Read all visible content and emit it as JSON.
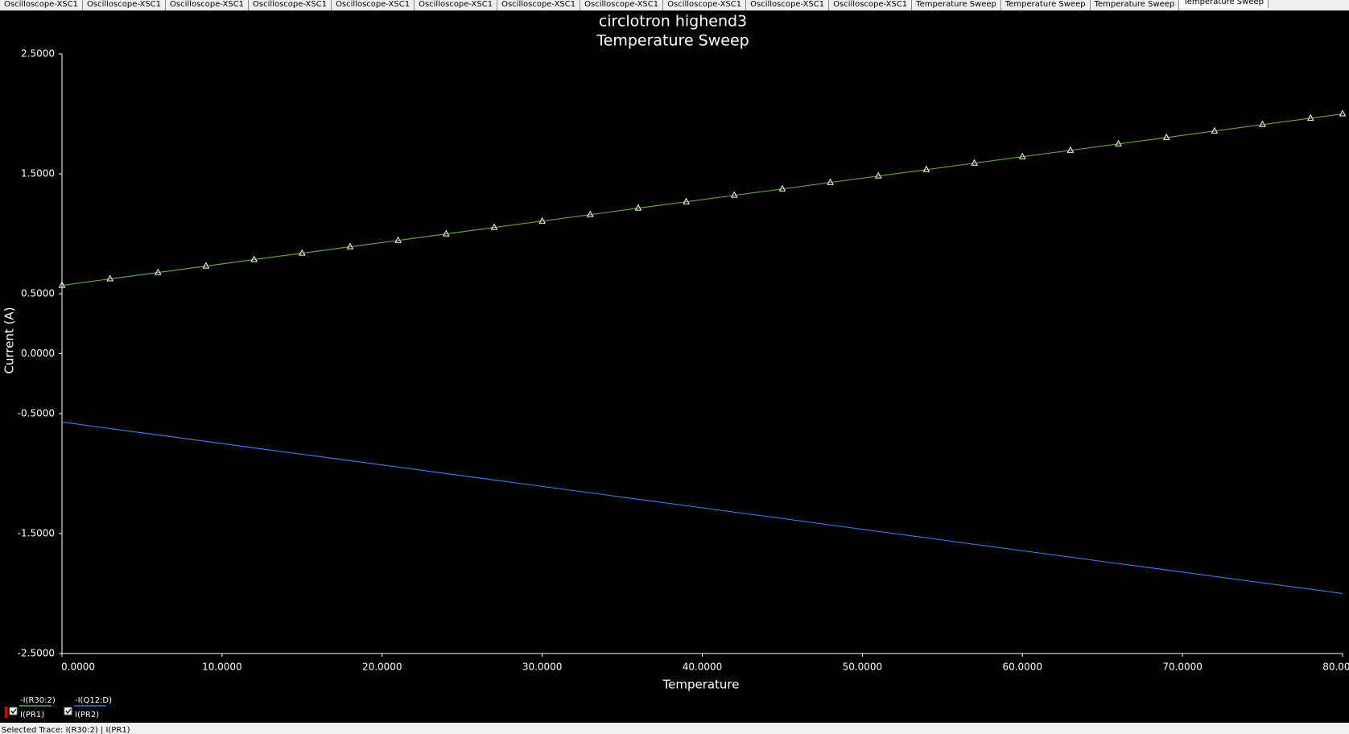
{
  "tabs": {
    "items": [
      "Oscilloscope-XSC1",
      "Oscilloscope-XSC1",
      "Oscilloscope-XSC1",
      "Oscilloscope-XSC1",
      "Oscilloscope-XSC1",
      "Oscilloscope-XSC1",
      "Oscilloscope-XSC1",
      "Oscilloscope-XSC1",
      "Oscilloscope-XSC1",
      "Oscilloscope-XSC1",
      "Oscilloscope-XSC1",
      "Temperature Sweep",
      "Temperature Sweep",
      "Temperature Sweep",
      "Temperature Sweep"
    ],
    "active": 14
  },
  "chart_data": {
    "type": "line",
    "title": "circlotron highend3",
    "subtitle": "Temperature Sweep",
    "x_label": "Temperature",
    "y_label": "Current (A)",
    "x": [
      0,
      3,
      6,
      9,
      12,
      15,
      18,
      21,
      24,
      27,
      30,
      33,
      36,
      39,
      42,
      45,
      48,
      51,
      54,
      57,
      60,
      63,
      66,
      69,
      72,
      75,
      78,
      80
    ],
    "series": [
      {
        "name": "-I(R30:2)",
        "probe": "I(PR1)",
        "color": "#5fa03f",
        "markers": true,
        "values": [
          0.57,
          0.624,
          0.677,
          0.731,
          0.785,
          0.838,
          0.892,
          0.945,
          0.999,
          1.053,
          1.106,
          1.16,
          1.214,
          1.267,
          1.321,
          1.374,
          1.428,
          1.482,
          1.535,
          1.589,
          1.643,
          1.696,
          1.75,
          1.803,
          1.857,
          1.911,
          1.964,
          2.0
        ]
      },
      {
        "name": "-I(Q12:D)",
        "probe": "I(PR2)",
        "color": "#3d74d6",
        "markers": false,
        "values": [
          -0.57,
          -0.624,
          -0.677,
          -0.731,
          -0.785,
          -0.838,
          -0.892,
          -0.945,
          -0.999,
          -1.053,
          -1.106,
          -1.16,
          -1.214,
          -1.267,
          -1.321,
          -1.374,
          -1.428,
          -1.482,
          -1.535,
          -1.589,
          -1.643,
          -1.696,
          -1.75,
          -1.803,
          -1.857,
          -1.911,
          -1.964,
          -2.0
        ]
      }
    ],
    "xlim": [
      0,
      80
    ],
    "xticks": [
      {
        "value": 0,
        "label": "0.0000"
      },
      {
        "value": 10,
        "label": "10.0000"
      },
      {
        "value": 20,
        "label": "20.0000"
      },
      {
        "value": 30,
        "label": "30.0000"
      },
      {
        "value": 40,
        "label": "40.0000"
      },
      {
        "value": 50,
        "label": "50.0000"
      },
      {
        "value": 60,
        "label": "60.0000"
      },
      {
        "value": 70,
        "label": "70.0000"
      },
      {
        "value": 80,
        "label": "80.0000"
      }
    ],
    "ylim": [
      -2.5,
      2.5
    ],
    "yticks": [
      {
        "value": 2.5,
        "label": "2.5000"
      },
      {
        "value": 1.5,
        "label": "1.5000"
      },
      {
        "value": 0.5,
        "label": "0.5000"
      },
      {
        "value": 0,
        "label": "0.0000"
      },
      {
        "value": -0.5,
        "label": "-0.5000"
      },
      {
        "value": -1.5,
        "label": "-1.5000"
      },
      {
        "value": -2.5,
        "label": "-2.5000"
      }
    ],
    "grid": false
  },
  "status_bar": {
    "text": "Selected Trace: I(R30:2) | I(PR1)"
  }
}
